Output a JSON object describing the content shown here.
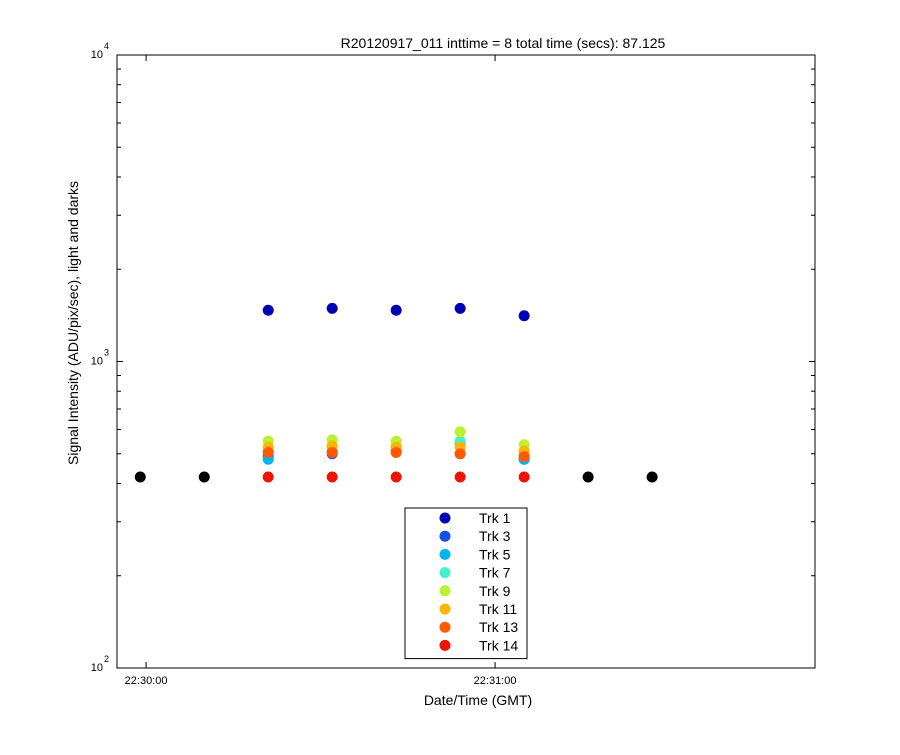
{
  "chart_data": {
    "type": "scatter",
    "title": "R20120917_011 inttime = 8 total time (secs): 87.125",
    "xlabel": "Date/Time (GMT)",
    "ylabel": "Signal Intensity (ADU/pix/sec), light and darks",
    "y_scale": "log",
    "ylim": [
      100,
      10000
    ],
    "xlim": [
      "22:29:55",
      "22:31:55"
    ],
    "x_ticks": [
      "22:30:00",
      "22:31:00"
    ],
    "y_ticks": [
      {
        "base": "10",
        "exp": "2",
        "value": 100
      },
      {
        "base": "10",
        "exp": "3",
        "value": 1000
      },
      {
        "base": "10",
        "exp": "4",
        "value": 10000
      }
    ],
    "grid": false,
    "legend_position": "bottom-center",
    "x": [
      "22:29:59",
      "22:30:10",
      "22:30:21",
      "22:30:32",
      "22:30:43",
      "22:30:54",
      "22:31:05",
      "22:31:16",
      "22:31:27"
    ],
    "series": [
      {
        "name": "Trk 1",
        "color": "#0000b4",
        "values": [
          null,
          null,
          1470,
          1490,
          1470,
          1490,
          1410,
          null,
          null
        ]
      },
      {
        "name": "Trk 3",
        "color": "#1450e6",
        "values": [
          null,
          null,
          490,
          500,
          510,
          500,
          480,
          null,
          null
        ]
      },
      {
        "name": "Trk 5",
        "color": "#00b4f0",
        "values": [
          null,
          null,
          480,
          510,
          520,
          540,
          480,
          null,
          null
        ]
      },
      {
        "name": "Trk 7",
        "color": "#46f0c8",
        "values": [
          null,
          null,
          510,
          520,
          530,
          550,
          500,
          null,
          null
        ]
      },
      {
        "name": "Trk 9",
        "color": "#bef032",
        "values": [
          null,
          null,
          550,
          555,
          550,
          590,
          535,
          null,
          null
        ]
      },
      {
        "name": "Trk 11",
        "color": "#ffb400",
        "values": [
          null,
          null,
          525,
          530,
          525,
          525,
          510,
          null,
          null
        ]
      },
      {
        "name": "Trk 13",
        "color": "#ff5a00",
        "values": [
          null,
          null,
          505,
          505,
          505,
          500,
          490,
          null,
          null
        ]
      },
      {
        "name": "Trk 14",
        "color": "#f01400",
        "values": [
          null,
          null,
          420,
          420,
          420,
          420,
          420,
          null,
          null
        ]
      }
    ],
    "dark_points": {
      "color": "#000000",
      "x": [
        "22:29:59",
        "22:30:10",
        "22:31:16",
        "22:31:27"
      ],
      "values": [
        420,
        420,
        420,
        420
      ]
    }
  }
}
